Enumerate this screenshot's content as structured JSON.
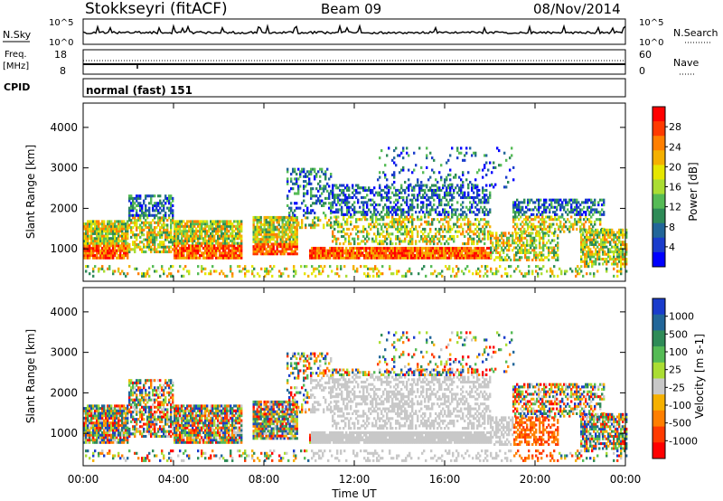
{
  "header": {
    "station": "Stokkseyri (fitACF)",
    "beam": "Beam 09",
    "date": "08/Nov/2014"
  },
  "top_panels": {
    "nsky_label": "N.Sky",
    "nsky_ticks": [
      "10^5",
      "10^0"
    ],
    "nsearch_label": "N.Search",
    "nsearch_ticks": [
      "10^5",
      "10^0"
    ],
    "freq_label": "Freq.",
    "freq_unit": "[MHz]",
    "freq_ticks": [
      "18",
      "8"
    ],
    "nave_label": "Nave",
    "nave_ticks": [
      "60",
      "0"
    ],
    "cpid_label": "CPID",
    "cpid_value": "normal (fast) 151"
  },
  "chart_data": [
    {
      "type": "heatmap",
      "name": "power",
      "ylabel": "Slant Range [km]",
      "yticks": [
        "4000",
        "3000",
        "2000",
        "1000"
      ],
      "ylim": [
        200,
        4600
      ],
      "xlim": [
        0,
        24
      ],
      "colorbar_label": "Power [dB]",
      "colorbar_ticks": [
        "28",
        "24",
        "20",
        "16",
        "12",
        "8",
        "4"
      ],
      "colorbar_colors": [
        "#ff0000",
        "#ff3a00",
        "#ff7f00",
        "#f5b000",
        "#e6e600",
        "#aadd33",
        "#55bb55",
        "#2e8b57",
        "#226699",
        "#1a3ccc",
        "#0000ff"
      ]
    },
    {
      "type": "heatmap",
      "name": "velocity",
      "ylabel": "Slant Range [km]",
      "yticks": [
        "4000",
        "3000",
        "2000",
        "1000"
      ],
      "ylim": [
        200,
        4600
      ],
      "xlim": [
        0,
        24
      ],
      "colorbar_label": "Velocity [m s-1]",
      "colorbar_ticks": [
        "1000",
        "500",
        "100",
        "25",
        "-25",
        "-100",
        "-500",
        "-1000"
      ],
      "colorbar_colors": [
        "#1a3ccc",
        "#226699",
        "#2e8b57",
        "#55bb55",
        "#aadd33",
        "#c8c8c8",
        "#f5b000",
        "#ff7f00",
        "#ff3a00",
        "#ff0000"
      ]
    }
  ],
  "xaxis": {
    "ticks": [
      "00:00",
      "04:00",
      "08:00",
      "12:00",
      "16:00",
      "20:00",
      "00:00"
    ],
    "label": "Time UT"
  }
}
